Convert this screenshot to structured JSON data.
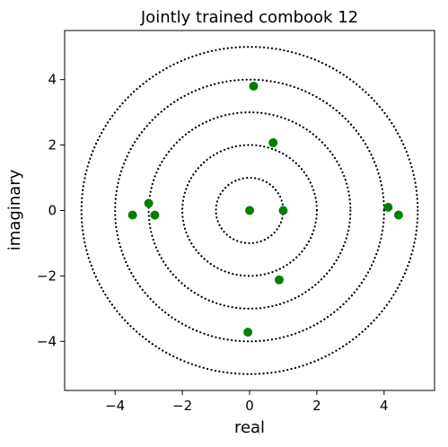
{
  "chart_data": {
    "type": "scatter",
    "title": "Jointly trained combook 12",
    "xlabel": "real",
    "ylabel": "imaginary",
    "xlim": [
      -5.5,
      5.5
    ],
    "ylim": [
      -5.5,
      5.5
    ],
    "xticks": [
      -4,
      -2,
      0,
      2,
      4
    ],
    "yticks": [
      -4,
      -2,
      0,
      2,
      4
    ],
    "xtick_labels": [
      "−4",
      "−2",
      "0",
      "2",
      "4"
    ],
    "ytick_labels": [
      "−4",
      "−2",
      "0",
      "2",
      "4"
    ],
    "grid": false,
    "legend": "none",
    "reference_circles": {
      "radii": [
        1,
        2,
        3,
        4,
        5
      ],
      "style": "dotted",
      "color": "#000000"
    },
    "series": [
      {
        "color": "#008000",
        "x": [
          0.0,
          1.0,
          0.12,
          0.7,
          -3.48,
          -3.0,
          -2.82,
          4.12,
          4.43,
          0.88,
          -0.05
        ],
        "y": [
          0.0,
          0.0,
          3.8,
          2.07,
          -0.14,
          0.22,
          -0.14,
          0.1,
          -0.14,
          -2.12,
          -3.72
        ]
      }
    ]
  }
}
